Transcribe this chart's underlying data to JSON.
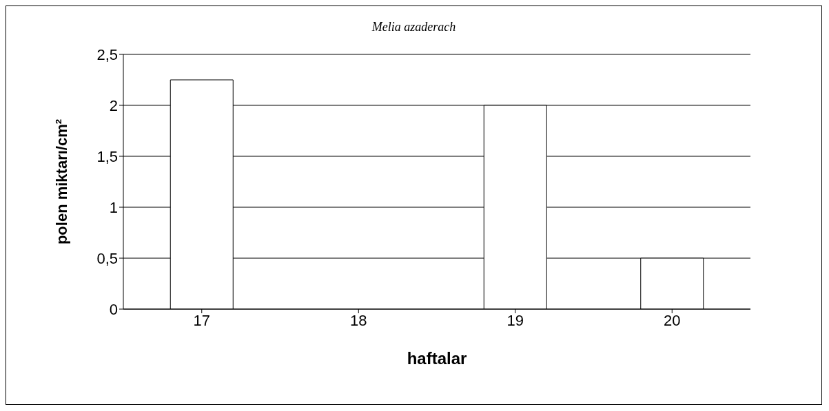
{
  "chart_data": {
    "type": "bar",
    "title": "Melia azaderach",
    "xlabel": "haftalar",
    "ylabel": "polen miktarı/cm²",
    "categories": [
      "17",
      "18",
      "19",
      "20"
    ],
    "values": [
      2.25,
      0,
      2,
      0.5
    ],
    "color": "#ffffff",
    "ylim": [
      0,
      2.5
    ],
    "yticks": [
      0,
      {
        "value": 0.5,
        "label": "0,5"
      },
      1,
      {
        "value": 1.5,
        "label": "1,5"
      },
      2,
      {
        "value": 2.5,
        "label": "2,5"
      }
    ],
    "grid": "y"
  }
}
